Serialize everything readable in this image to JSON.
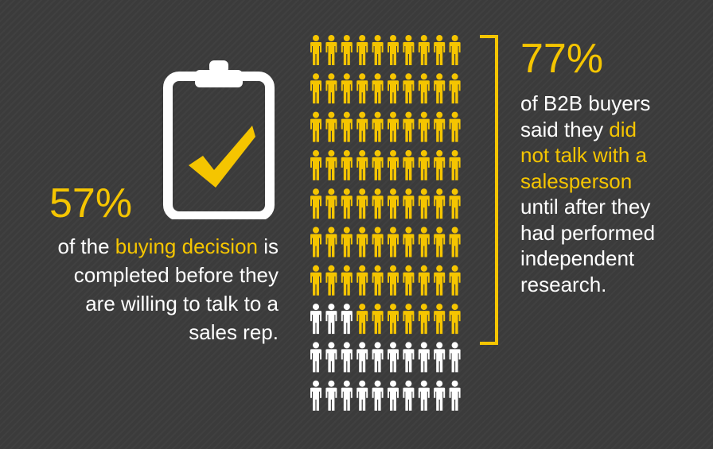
{
  "left_stat": {
    "percent": "57%",
    "line1_pre": "of the ",
    "line1_highlight": "buying decision",
    "line1_post": " is",
    "line2": "completed before they",
    "line3": "are willing to talk to a",
    "line4": "sales rep."
  },
  "right_stat": {
    "percent": "77%",
    "line1": "of B2B buyers",
    "line2_pre": "said they ",
    "line2_highlight": "did",
    "line3_highlight": "not talk with a",
    "line4_highlight": "salesperson",
    "line5": "until after they",
    "line6": "had performed",
    "line7": "independent",
    "line8": "research."
  },
  "people_grid": {
    "rows": 10,
    "columns": 10,
    "highlighted_count": 77,
    "highlight_color": "#f5c500",
    "base_color": "#ffffff"
  },
  "icons": {
    "clipboard": "clipboard-check-icon",
    "person": "person-icon"
  },
  "colors": {
    "accent": "#f5c500",
    "background": "#3b3b3b",
    "text": "#ffffff"
  }
}
